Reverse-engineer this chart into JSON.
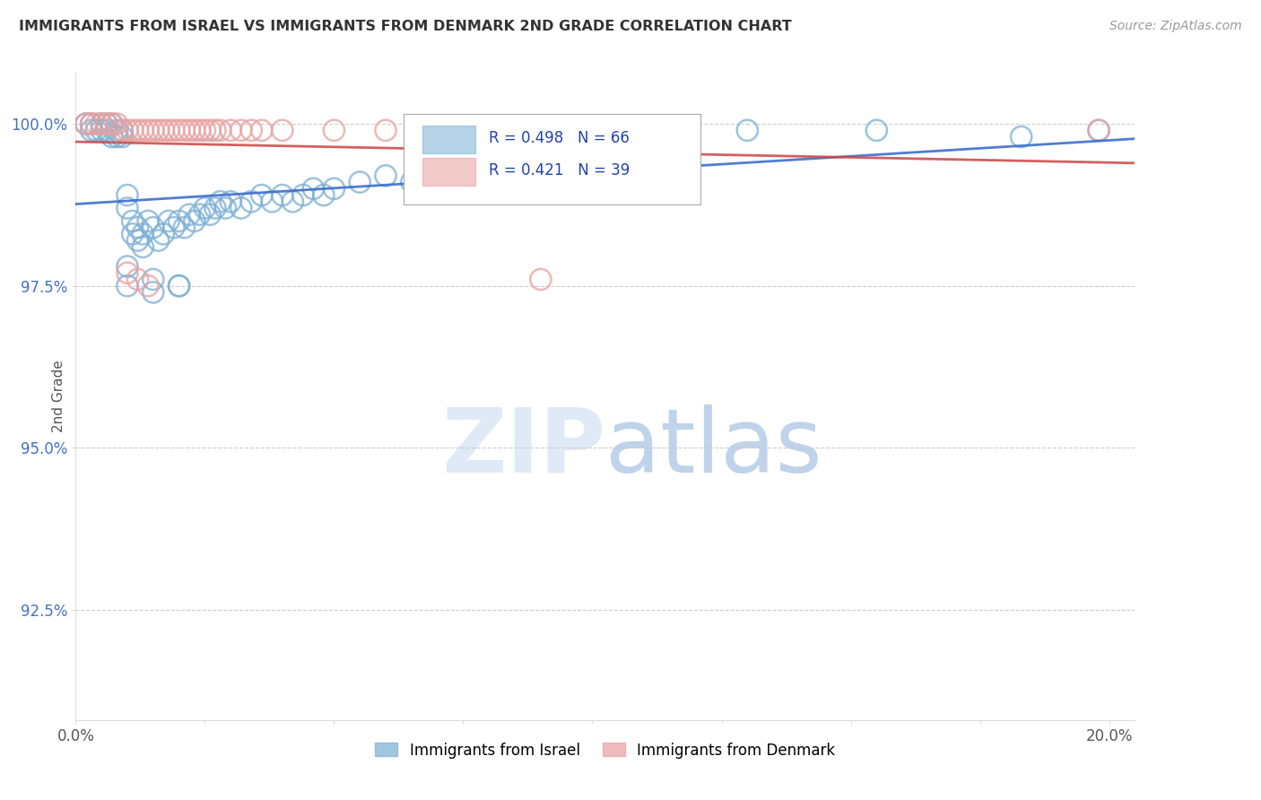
{
  "title": "IMMIGRANTS FROM ISRAEL VS IMMIGRANTS FROM DENMARK 2ND GRADE CORRELATION CHART",
  "source": "Source: ZipAtlas.com",
  "ylabel": "2nd Grade",
  "y_tick_labels": [
    "92.5%",
    "95.0%",
    "97.5%",
    "100.0%"
  ],
  "y_tick_values": [
    0.925,
    0.95,
    0.975,
    1.0
  ],
  "xlim": [
    0.0,
    0.205
  ],
  "ylim": [
    0.908,
    1.008
  ],
  "R_israel": 0.498,
  "N_israel": 66,
  "R_denmark": 0.421,
  "N_denmark": 39,
  "color_israel": "#7bafd4",
  "color_denmark": "#e8a0a0",
  "trendline_israel": "#3d6fcc",
  "trendline_denmark": "#cc4444",
  "legend_label_israel": "Immigrants from Israel",
  "legend_label_denmark": "Immigrants from Denmark",
  "grid_color": "#cccccc",
  "ytick_color": "#4472c4",
  "title_color": "#333333",
  "source_color": "#999999"
}
